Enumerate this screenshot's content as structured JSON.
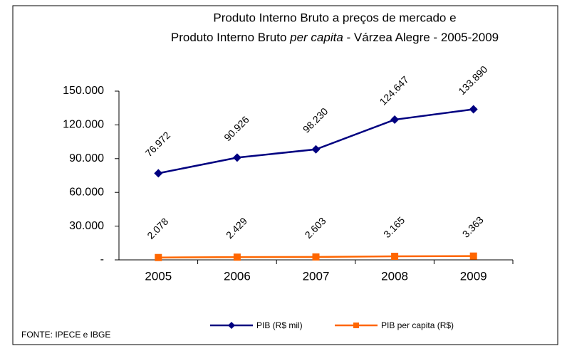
{
  "chart_data": {
    "type": "line",
    "title": [
      "Produto Interno Bruto a preços de mercado  e",
      [
        "Produto Interno Bruto ",
        "per capita",
        " - Várzea Alegre - 2005-2009"
      ]
    ],
    "categories": [
      "2005",
      "2006",
      "2007",
      "2008",
      "2009"
    ],
    "series": [
      {
        "name": "PIB (R$ mil)",
        "color": "#000080",
        "marker": "diamond",
        "values": [
          76972,
          90926,
          98230,
          124647,
          133890
        ],
        "value_labels": [
          "76.972",
          "90.926",
          "98.230",
          "124.647",
          "133.890"
        ]
      },
      {
        "name": "PIB per capita (R$)",
        "color": "#ff6600",
        "marker": "square",
        "values": [
          2078,
          2429,
          2603,
          3165,
          3363
        ],
        "value_labels": [
          "2.078",
          "2.429",
          "2.603",
          "3.165",
          "3.363"
        ]
      }
    ],
    "ylim": [
      0,
      150000
    ],
    "yticks": [
      {
        "value": 0,
        "label": "-"
      },
      {
        "value": 30000,
        "label": "30.000"
      },
      {
        "value": 60000,
        "label": "60.000"
      },
      {
        "value": 90000,
        "label": "90.000"
      },
      {
        "value": 120000,
        "label": "120.000"
      },
      {
        "value": 150000,
        "label": "150.000"
      }
    ],
    "source": "FONTE: IPECE e IBGE"
  }
}
